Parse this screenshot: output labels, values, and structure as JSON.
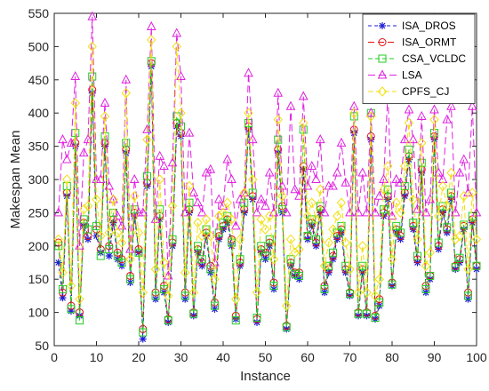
{
  "chart_data": {
    "type": "line",
    "xlabel": "Instance",
    "ylabel": "Makespan Mean",
    "xlim": [
      0,
      100
    ],
    "ylim": [
      50,
      550
    ],
    "xticks": [
      0,
      10,
      20,
      30,
      40,
      50,
      60,
      70,
      80,
      90,
      100
    ],
    "yticks": [
      50,
      100,
      150,
      200,
      250,
      300,
      350,
      400,
      450,
      500,
      550
    ],
    "grid": false,
    "legend_position": "top-right",
    "x": [
      1,
      2,
      3,
      4,
      5,
      6,
      7,
      8,
      9,
      10,
      11,
      12,
      13,
      14,
      15,
      16,
      17,
      18,
      19,
      20,
      21,
      22,
      23,
      24,
      25,
      26,
      27,
      28,
      29,
      30,
      31,
      32,
      33,
      34,
      35,
      36,
      37,
      38,
      39,
      40,
      41,
      42,
      43,
      44,
      45,
      46,
      47,
      48,
      49,
      50,
      51,
      52,
      53,
      54,
      55,
      56,
      57,
      58,
      59,
      60,
      61,
      62,
      63,
      64,
      65,
      66,
      67,
      68,
      69,
      70,
      71,
      72,
      73,
      74,
      75,
      76,
      77,
      78,
      79,
      80,
      81,
      82,
      83,
      84,
      85,
      86,
      87,
      88,
      89,
      90,
      91,
      92,
      93,
      94,
      95,
      96,
      97,
      98,
      99,
      100
    ],
    "series": [
      {
        "name": "ISA_DROS",
        "color": "#1f1fd6",
        "dash": "4,3",
        "marker": "asterisk",
        "values": [
          175,
          122,
          275,
          102,
          350,
          95,
          230,
          210,
          430,
          215,
          190,
          350,
          185,
          235,
          180,
          170,
          340,
          145,
          245,
          190,
          60,
          290,
          470,
          120,
          240,
          130,
          85,
          200,
          380,
          365,
          120,
          250,
          95,
          190,
          170,
          215,
          160,
          105,
          210,
          225,
          235,
          200,
          90,
          170,
          250,
          375,
          270,
          85,
          190,
          180,
          200,
          135,
          340,
          250,
          75,
          170,
          155,
          150,
          315,
          210,
          230,
          200,
          250,
          130,
          160,
          180,
          210,
          220,
          160,
          125,
          370,
          95,
          160,
          95,
          360,
          90,
          110,
          245,
          270,
          140,
          220,
          210,
          275,
          330,
          225,
          175,
          310,
          130,
          150,
          360,
          195,
          250,
          220,
          270,
          165,
          175,
          225,
          120,
          235,
          165
        ]
      },
      {
        "name": "ISA_ORMT",
        "color": "#e01010",
        "dash": "7,4",
        "marker": "circle",
        "values": [
          205,
          130,
          280,
          110,
          355,
          100,
          235,
          215,
          435,
          225,
          195,
          355,
          200,
          240,
          190,
          180,
          345,
          155,
          250,
          195,
          75,
          295,
          475,
          130,
          245,
          140,
          90,
          205,
          385,
          370,
          130,
          255,
          100,
          195,
          175,
          220,
          170,
          115,
          215,
          230,
          240,
          210,
          95,
          175,
          255,
          380,
          275,
          90,
          195,
          190,
          205,
          145,
          345,
          260,
          80,
          175,
          160,
          160,
          320,
          215,
          235,
          205,
          255,
          140,
          165,
          185,
          215,
          225,
          165,
          130,
          375,
          100,
          165,
          100,
          365,
          95,
          120,
          250,
          275,
          145,
          225,
          215,
          280,
          335,
          230,
          180,
          315,
          140,
          155,
          365,
          200,
          255,
          225,
          275,
          170,
          180,
          230,
          130,
          240,
          170
        ]
      },
      {
        "name": "CSA_VCLDC",
        "color": "#22cc22",
        "dash": "5,3",
        "marker": "square",
        "values": [
          200,
          135,
          290,
          105,
          370,
          88,
          240,
          225,
          455,
          230,
          185,
          365,
          195,
          250,
          185,
          175,
          355,
          150,
          255,
          190,
          70,
          305,
          478,
          125,
          255,
          135,
          88,
          210,
          395,
          380,
          125,
          265,
          98,
          200,
          180,
          225,
          165,
          110,
          220,
          235,
          245,
          205,
          88,
          180,
          265,
          385,
          280,
          92,
          200,
          185,
          210,
          140,
          360,
          255,
          78,
          180,
          158,
          155,
          375,
          215,
          240,
          210,
          260,
          135,
          170,
          190,
          220,
          230,
          170,
          128,
          395,
          98,
          170,
          98,
          400,
          92,
          115,
          255,
          285,
          142,
          230,
          220,
          290,
          345,
          235,
          185,
          325,
          135,
          155,
          370,
          205,
          260,
          228,
          280,
          168,
          182,
          232,
          125,
          245,
          170
        ]
      },
      {
        "name": "LSA",
        "color": "#e020e0",
        "dash": "8,4",
        "marker": "triangle",
        "values": [
          250,
          360,
          330,
          355,
          455,
          200,
          340,
          360,
          545,
          300,
          300,
          415,
          290,
          270,
          245,
          230,
          450,
          195,
          300,
          250,
          250,
          375,
          530,
          240,
          335,
          320,
          155,
          325,
          520,
          455,
          250,
          370,
          280,
          265,
          250,
          310,
          315,
          175,
          270,
          260,
          330,
          300,
          230,
          270,
          280,
          460,
          360,
          250,
          270,
          260,
          310,
          250,
          430,
          290,
          250,
          410,
          285,
          275,
          425,
          290,
          320,
          300,
          360,
          250,
          290,
          290,
          310,
          355,
          295,
          250,
          410,
          250,
          310,
          250,
          400,
          250,
          275,
          300,
          430,
          245,
          300,
          295,
          360,
          405,
          360,
          255,
          395,
          250,
          270,
          405,
          310,
          300,
          390,
          410,
          250,
          310,
          330,
          280,
          410,
          250
        ]
      },
      {
        "name": "CPFS_CJ",
        "color": "#f0e010",
        "dash": "6,3",
        "marker": "diamond",
        "values": [
          210,
          160,
          300,
          140,
          415,
          120,
          255,
          260,
          500,
          270,
          215,
          395,
          220,
          270,
          220,
          205,
          430,
          180,
          275,
          220,
          130,
          360,
          510,
          165,
          300,
          175,
          125,
          260,
          500,
          400,
          160,
          290,
          130,
          235,
          215,
          240,
          215,
          150,
          245,
          250,
          265,
          240,
          120,
          210,
          280,
          400,
          300,
          130,
          240,
          225,
          245,
          180,
          390,
          275,
          110,
          210,
          190,
          195,
          385,
          245,
          265,
          240,
          285,
          170,
          205,
          225,
          245,
          265,
          205,
          165,
          400,
          130,
          200,
          130,
          395,
          125,
          150,
          285,
          320,
          180,
          265,
          250,
          320,
          385,
          270,
          210,
          355,
          170,
          190,
          390,
          245,
          290,
          260,
          310,
          210,
          215,
          275,
          165,
          280,
          210
        ]
      }
    ]
  }
}
